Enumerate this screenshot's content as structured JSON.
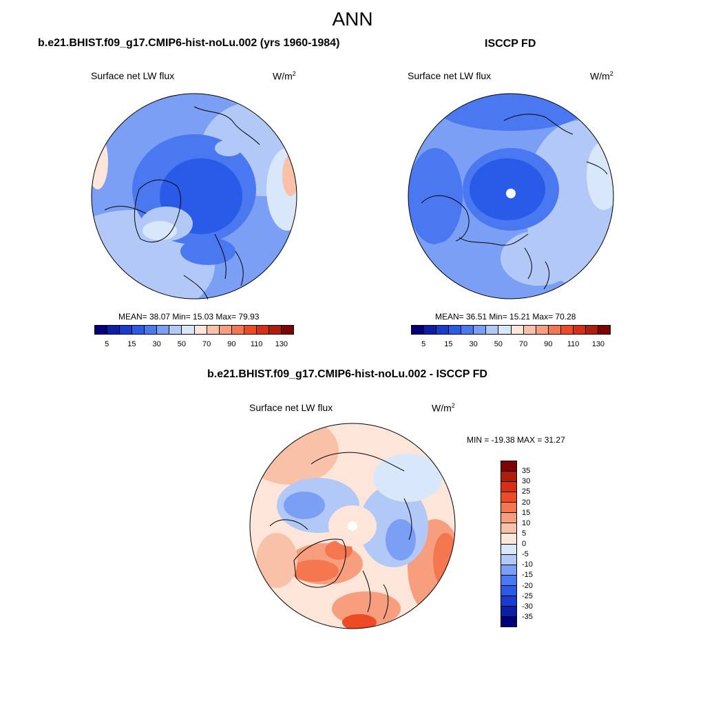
{
  "figure": {
    "title": "ANN"
  },
  "panels": [
    {
      "id": "model",
      "title": "b.e21.BHIST.f09_g17.CMIP6-hist-noLu.002 (yrs 1960-1984)",
      "variable": "Surface net LW flux",
      "units_base": "W/m",
      "units_exp": "2",
      "stats": "MEAN=  38.07  Min=  15.03  Max=  79.93",
      "colorbar": {
        "colors": [
          "#00007d",
          "#0b1fa6",
          "#1a3ccc",
          "#2a5ae8",
          "#4a78f0",
          "#7a9ff5",
          "#b2c9f8",
          "#d9e7fb",
          "#fde5d9",
          "#f9c2a8",
          "#f79e7e",
          "#f4774f",
          "#ee4b25",
          "#d82e16",
          "#b01d0a",
          "#7d0505"
        ],
        "tick_labels": [
          "5",
          "15",
          "30",
          "50",
          "70",
          "90",
          "110",
          "130"
        ]
      }
    },
    {
      "id": "obs",
      "title": "ISCCP FD",
      "variable": "Surface net LW flux",
      "units_base": "W/m",
      "units_exp": "2",
      "stats": "MEAN=  36.51  Min=  15.21  Max=  70.28",
      "colorbar": {
        "colors": [
          "#00007d",
          "#0b1fa6",
          "#1a3ccc",
          "#2a5ae8",
          "#4a78f0",
          "#7a9ff5",
          "#b2c9f8",
          "#d9e7fb",
          "#fde5d9",
          "#f9c2a8",
          "#f79e7e",
          "#f4774f",
          "#ee4b25",
          "#d82e16",
          "#b01d0a",
          "#7d0505"
        ],
        "tick_labels": [
          "5",
          "15",
          "30",
          "50",
          "70",
          "90",
          "110",
          "130"
        ]
      }
    },
    {
      "id": "diff",
      "title": "b.e21.BHIST.f09_g17.CMIP6-hist-noLu.002 - ISCCP FD",
      "variable": "Surface net LW flux",
      "units_base": "W/m",
      "units_exp": "2",
      "stats": "MIN = -19.38 MAX =  31.27",
      "colorbar": {
        "colors": [
          "#7d0505",
          "#b01d0a",
          "#d82e16",
          "#ee4b25",
          "#f4774f",
          "#f79e7e",
          "#f9c2a8",
          "#fde5d9",
          "#d9e7fb",
          "#b2c9f8",
          "#7a9ff5",
          "#4a78f0",
          "#2a5ae8",
          "#1a3ccc",
          "#0b1fa6",
          "#00007d"
        ],
        "tick_labels": [
          "35",
          "30",
          "25",
          "20",
          "15",
          "10",
          "5",
          "0",
          "-5",
          "-10",
          "-15",
          "-20",
          "-25",
          "-30",
          "-35"
        ]
      }
    }
  ]
}
